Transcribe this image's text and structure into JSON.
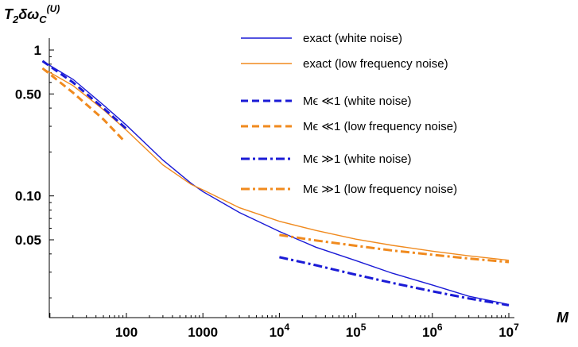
{
  "chart_data": {
    "type": "line",
    "xscale": "log",
    "yscale": "log",
    "xlim": [
      8,
      12000000
    ],
    "ylim": [
      0.0165,
      1.55
    ],
    "ylabel_parts": {
      "base": "T",
      "sub1": "2",
      "mid": "δω",
      "sub2": "C",
      "sup": "(U)"
    },
    "xlabel": "M",
    "x_ticks": [
      {
        "value": 100,
        "label": "100"
      },
      {
        "value": 1000,
        "label": "1000"
      },
      {
        "value": 10000,
        "base": "10",
        "exp": "4"
      },
      {
        "value": 100000,
        "base": "10",
        "exp": "5"
      },
      {
        "value": 1000000,
        "base": "10",
        "exp": "6"
      },
      {
        "value": 10000000,
        "base": "10",
        "exp": "7"
      }
    ],
    "y_ticks": [
      {
        "value": 0.05,
        "label": "0.05"
      },
      {
        "value": 0.1,
        "label": "0.10"
      },
      {
        "value": 0.5,
        "label": "0.50"
      },
      {
        "value": 1,
        "label": "1"
      }
    ],
    "grid": false,
    "legend_position": "top-right",
    "series": [
      {
        "name": "exact (white noise)",
        "color": "#1a1ad6",
        "style": "solid",
        "x": [
          8,
          20,
          50,
          100,
          300,
          700,
          1000,
          3000,
          10000,
          30000,
          100000,
          300000,
          1000000,
          3000000,
          10000000
        ],
        "y": [
          0.84,
          0.63,
          0.42,
          0.305,
          0.176,
          0.122,
          0.107,
          0.077,
          0.057,
          0.0445,
          0.036,
          0.0295,
          0.0245,
          0.0205,
          0.018
        ]
      },
      {
        "name": "exact (low frequency noise)",
        "color": "#f08a1e",
        "style": "solid",
        "x": [
          8,
          20,
          50,
          100,
          300,
          700,
          1000,
          3000,
          10000,
          30000,
          100000,
          300000,
          1000000,
          3000000,
          10000000
        ],
        "y": [
          0.75,
          0.57,
          0.39,
          0.282,
          0.163,
          0.12,
          0.11,
          0.083,
          0.067,
          0.058,
          0.0505,
          0.0458,
          0.0418,
          0.0388,
          0.0362
        ]
      },
      {
        "name": "Mϵ ≪1 (white noise)",
        "color": "#1a1ad6",
        "style": "dashed",
        "x": [
          8,
          20,
          50,
          100
        ],
        "y": [
          0.84,
          0.6,
          0.4,
          0.288
        ]
      },
      {
        "name": "Mϵ ≪1 (low frequency noise)",
        "color": "#f08a1e",
        "style": "dashed",
        "x": [
          8,
          20,
          50,
          90
        ],
        "y": [
          0.75,
          0.51,
          0.335,
          0.243
        ]
      },
      {
        "name": "Mϵ ≫1 (white noise)",
        "color": "#1a1ad6",
        "style": "dashdot",
        "x": [
          10000,
          30000,
          100000,
          300000,
          1000000,
          3000000,
          10000000
        ],
        "y": [
          0.038,
          0.0335,
          0.0288,
          0.0253,
          0.0222,
          0.0198,
          0.0178
        ]
      },
      {
        "name": "Mϵ ≫1 (low frequency noise)",
        "color": "#f08a1e",
        "style": "dashdot",
        "x": [
          10000,
          30000,
          100000,
          300000,
          1000000,
          3000000,
          10000000
        ],
        "y": [
          0.054,
          0.0495,
          0.0455,
          0.0422,
          0.0395,
          0.0372,
          0.0352
        ]
      }
    ]
  }
}
